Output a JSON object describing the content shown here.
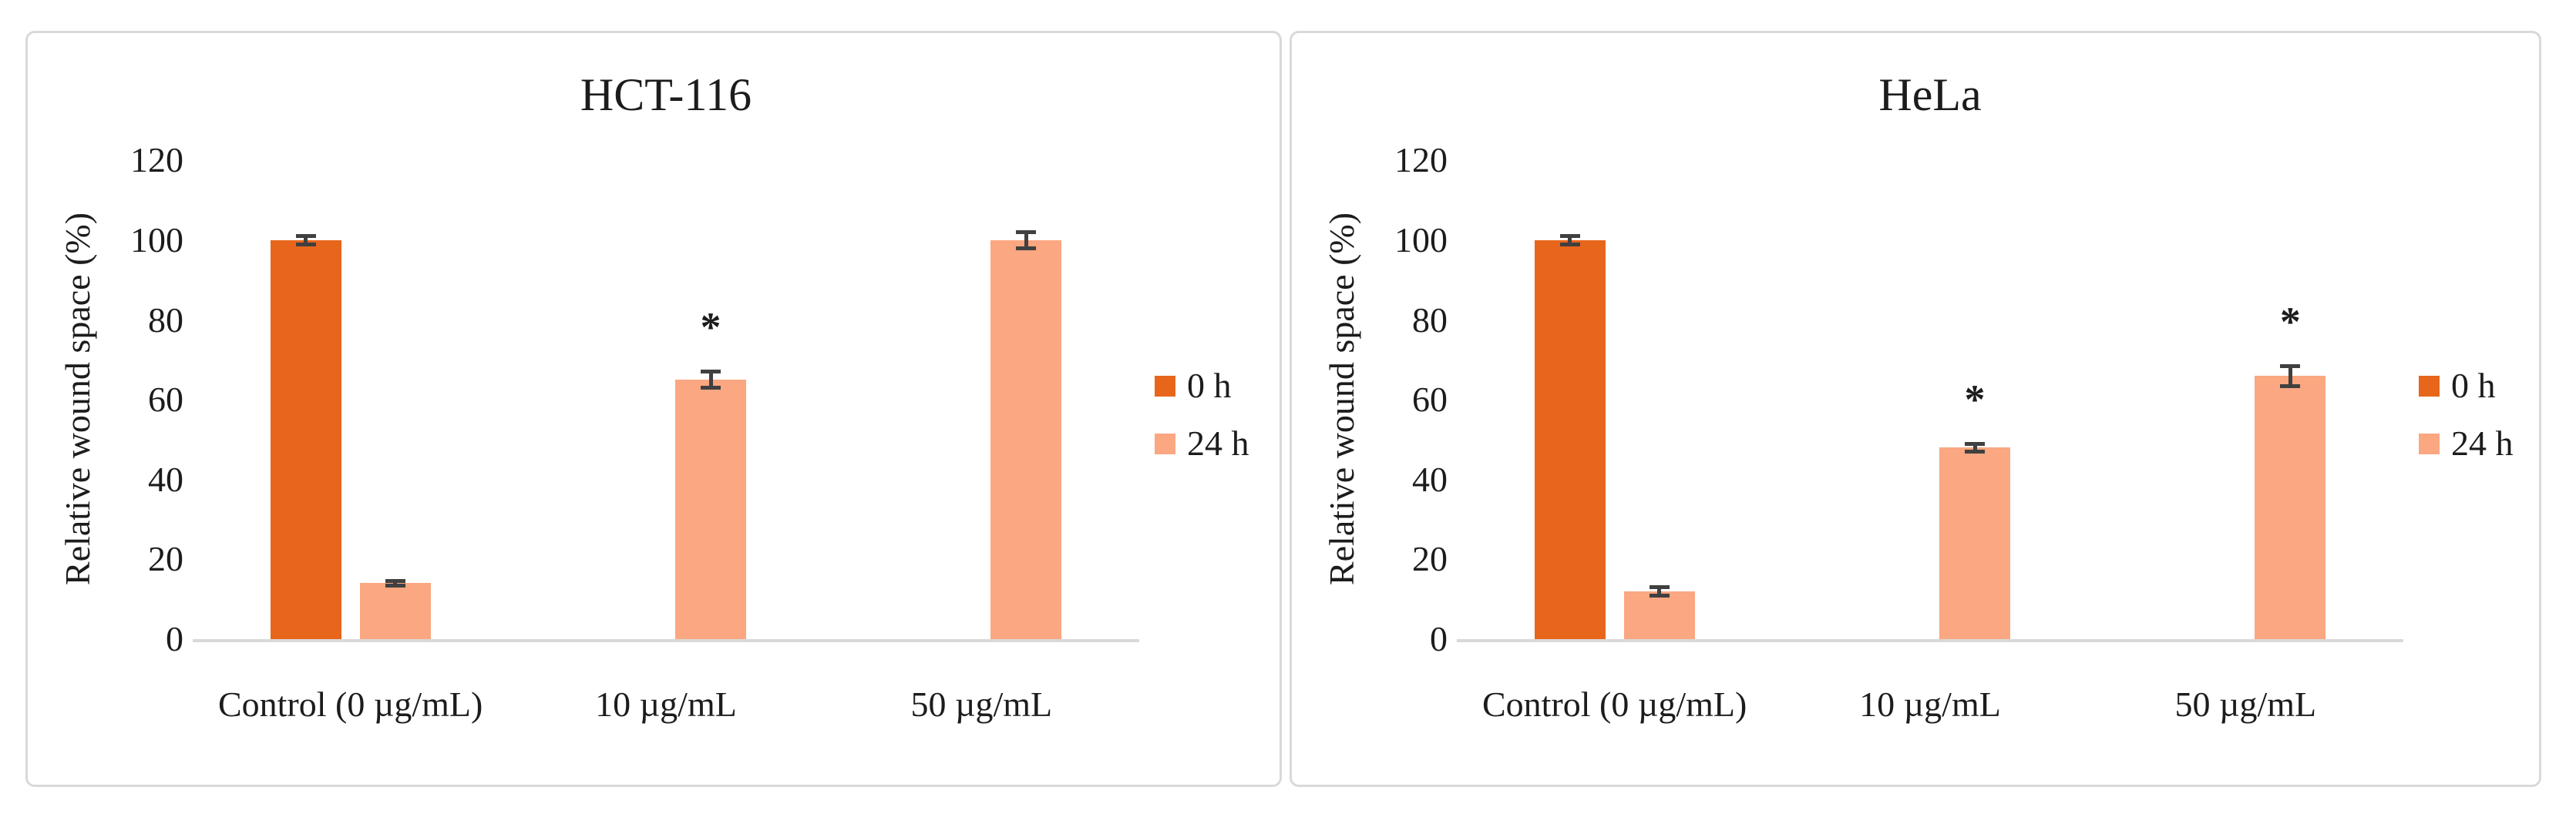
{
  "figure": {
    "background": "#ffffff",
    "panel_border_color": "#d9d9d9",
    "axis_line_color": "#d9d9d9",
    "error_bar_color": "#404040",
    "text_color": "#1c1c1c"
  },
  "chart_data": [
    {
      "type": "bar",
      "title": "HCT-116",
      "ylabel": "Relative wound space (%)",
      "ylim": [
        0,
        120
      ],
      "yticks": [
        0,
        20,
        40,
        60,
        80,
        100,
        120
      ],
      "grid": false,
      "legend_position": "right",
      "categories": [
        "Control (0 µg/mL)",
        "10 µg/mL",
        "50 µg/mL"
      ],
      "series": [
        {
          "name": "0 h",
          "color": "#e8661b",
          "values": [
            100,
            null,
            null
          ],
          "errors": [
            1.5,
            null,
            null
          ]
        },
        {
          "name": "24 h",
          "color": "#fba781",
          "values": [
            14,
            65,
            100
          ],
          "errors": [
            1,
            2.5,
            2.5
          ]
        }
      ],
      "annotations": [
        {
          "category": "10 µg/mL",
          "series": "24 h",
          "text": "*"
        }
      ]
    },
    {
      "type": "bar",
      "title": "HeLa",
      "ylabel": "Relative wound space (%)",
      "ylim": [
        0,
        120
      ],
      "yticks": [
        0,
        20,
        40,
        60,
        80,
        100,
        120
      ],
      "grid": false,
      "legend_position": "right",
      "categories": [
        "Control (0 µg/mL)",
        "10 µg/mL",
        "50 µg/mL"
      ],
      "series": [
        {
          "name": "0 h",
          "color": "#e8661b",
          "values": [
            100,
            null,
            null
          ],
          "errors": [
            1.5,
            null,
            null
          ]
        },
        {
          "name": "24 h",
          "color": "#fba781",
          "values": [
            12,
            48,
            66
          ],
          "errors": [
            1.5,
            1.5,
            3
          ]
        }
      ],
      "annotations": [
        {
          "category": "10 µg/mL",
          "series": "24 h",
          "text": "*"
        },
        {
          "category": "50 µg/mL",
          "series": "24 h",
          "text": "*"
        }
      ]
    }
  ]
}
